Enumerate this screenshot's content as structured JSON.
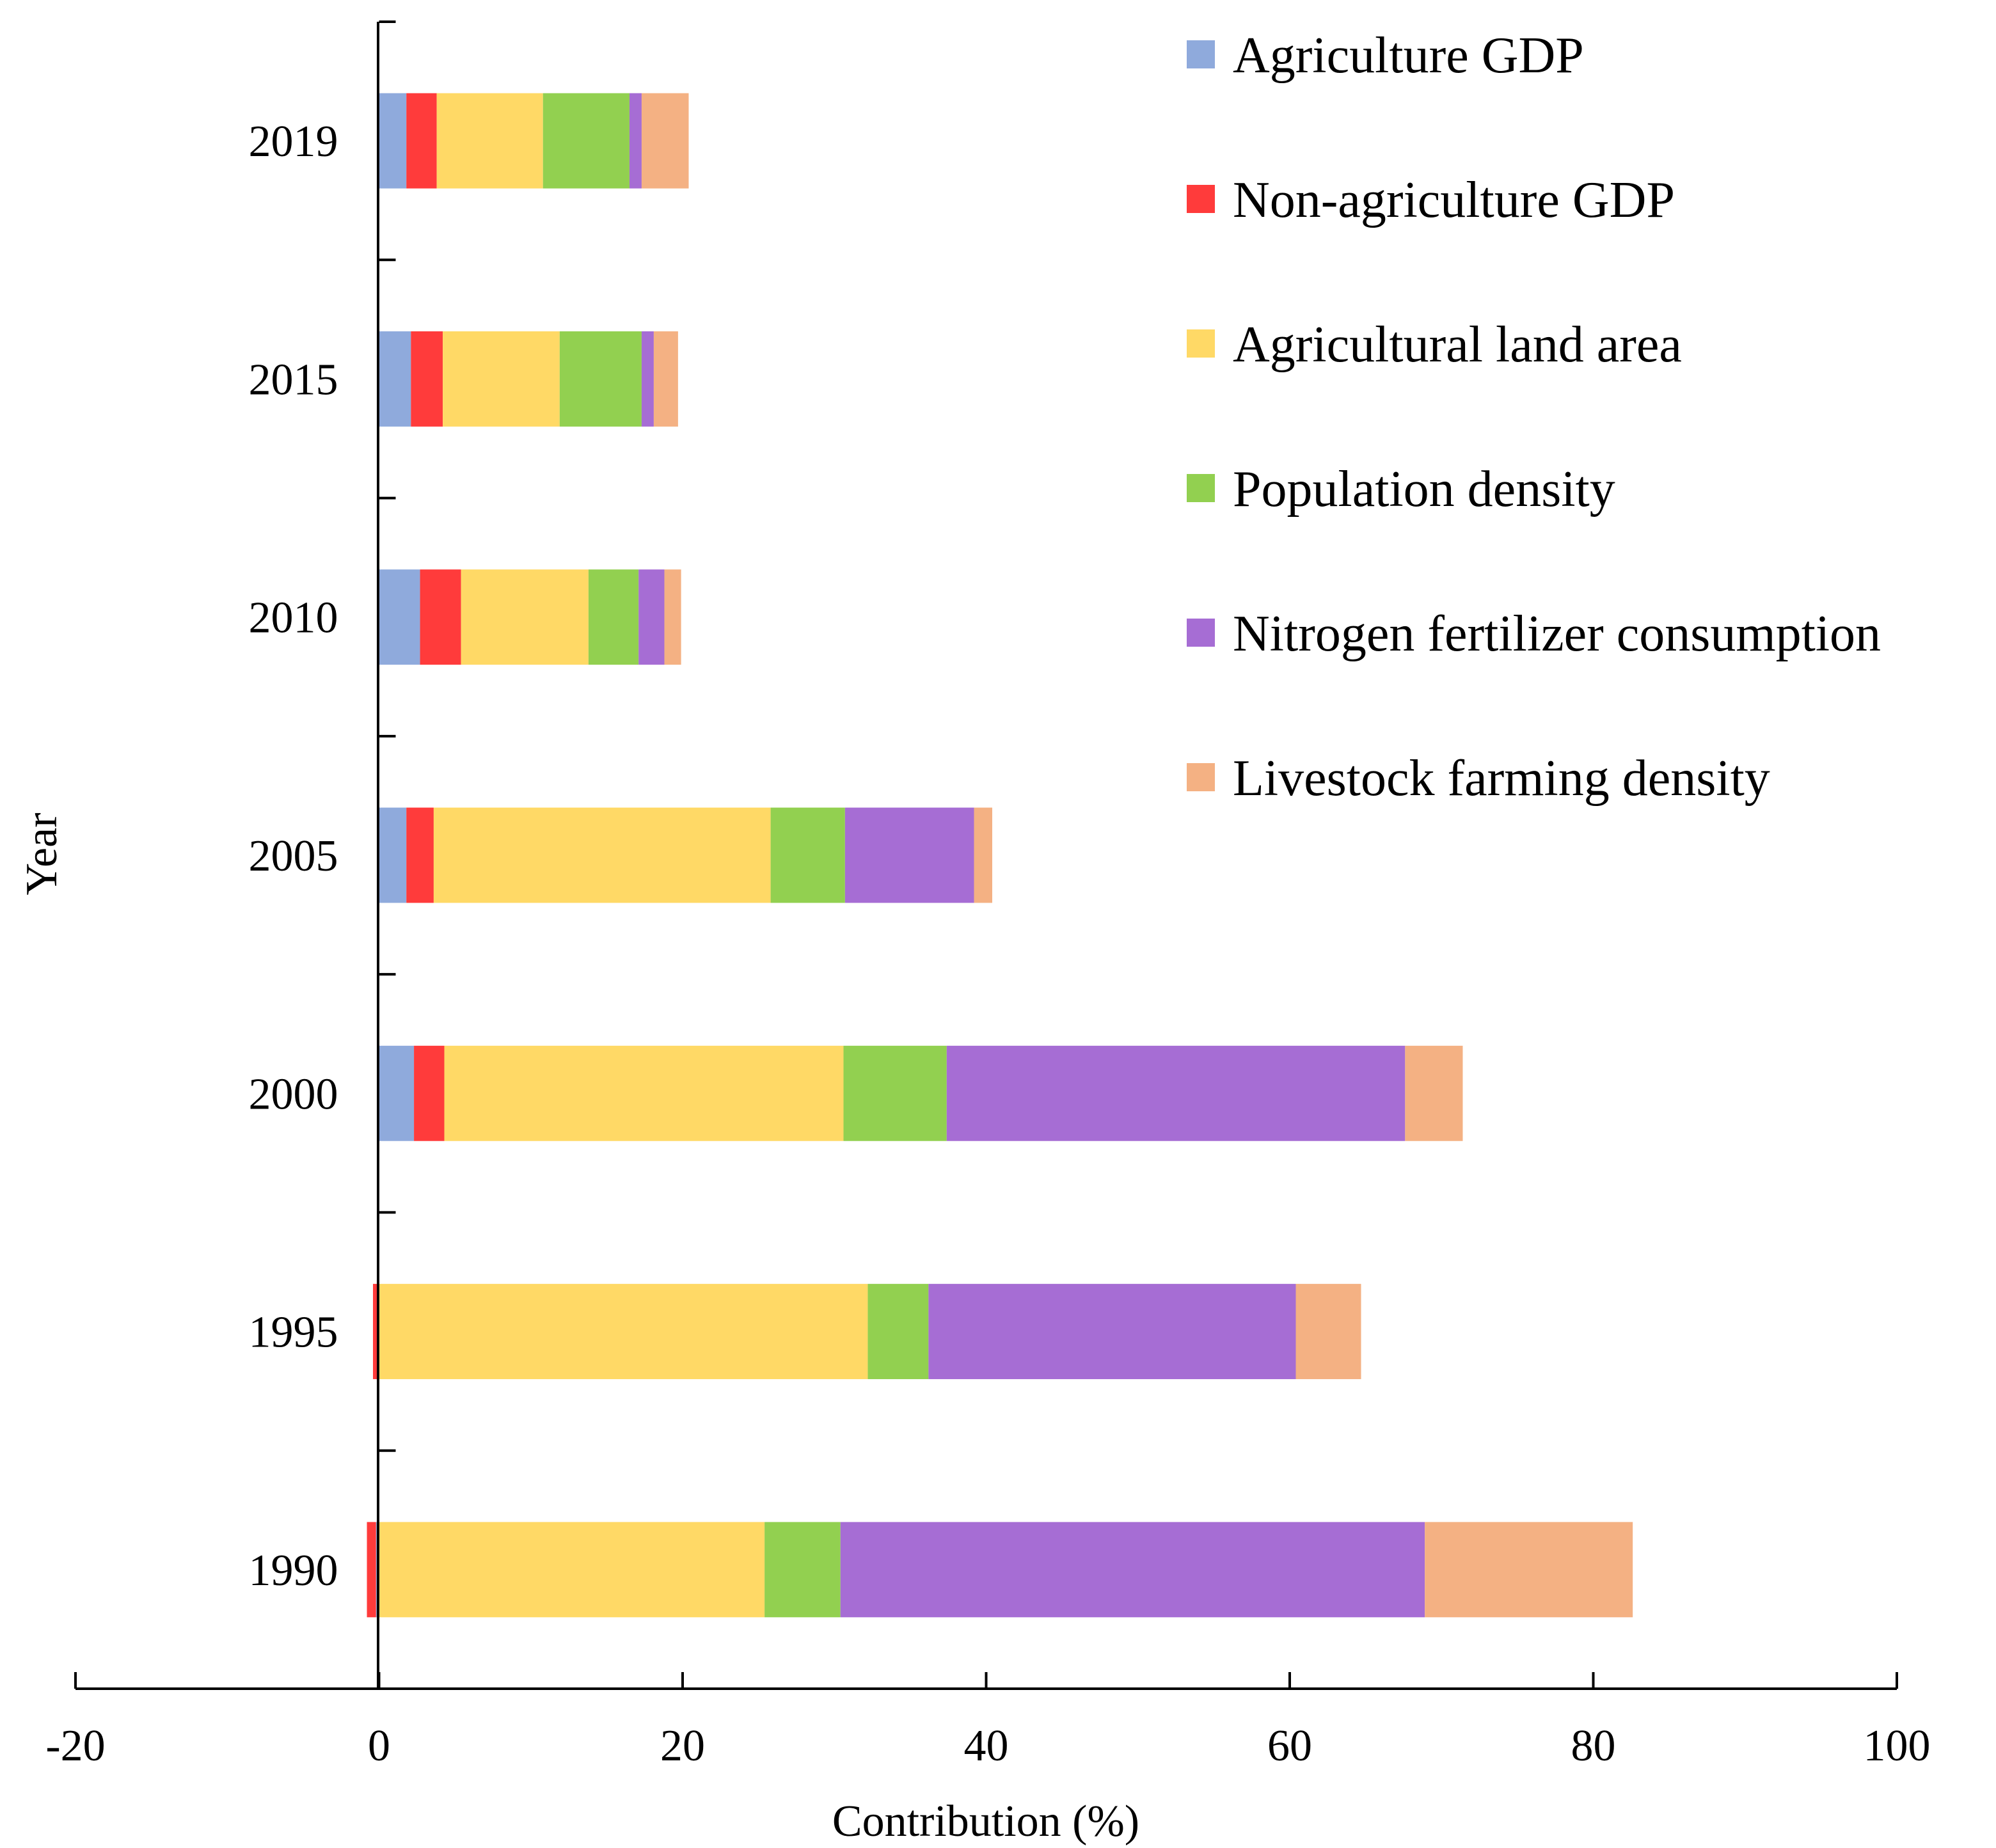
{
  "chart_data": {
    "type": "bar",
    "orientation": "horizontal",
    "stacked": true,
    "title": "",
    "xlabel": "Contribution (%)",
    "ylabel": "Year",
    "xlim": [
      -20,
      100
    ],
    "xticks": [
      -20,
      0,
      20,
      40,
      60,
      80,
      100
    ],
    "grid": false,
    "legend_position": "top-right",
    "categories": [
      "1990",
      "1995",
      "2000",
      "2005",
      "2010",
      "2015",
      "2019"
    ],
    "series": [
      {
        "name": "Agriculture GDP",
        "color": "#8faadc",
        "values": [
          -0.2,
          -0.1,
          2.3,
          1.8,
          2.7,
          2.1,
          1.8
        ]
      },
      {
        "name": "Non-agriculture GDP",
        "color": "#ff3b3b",
        "values": [
          -0.6,
          -0.3,
          2.0,
          1.8,
          2.7,
          2.1,
          2.0
        ]
      },
      {
        "name": "Agricultural land area",
        "color": "#ffd966",
        "values": [
          25.4,
          32.2,
          26.3,
          22.2,
          8.4,
          7.7,
          7.0
        ]
      },
      {
        "name": "Population density",
        "color": "#92d050",
        "values": [
          5.0,
          4.0,
          6.8,
          4.9,
          3.3,
          5.4,
          5.7
        ]
      },
      {
        "name": "Nitrogen fertilizer consumption",
        "color": "#a66dd4",
        "values": [
          38.5,
          24.2,
          30.2,
          8.5,
          1.7,
          0.8,
          0.8
        ]
      },
      {
        "name": "Livestock farming density",
        "color": "#f4b183",
        "values": [
          13.7,
          4.3,
          3.8,
          1.2,
          1.1,
          1.6,
          3.1
        ]
      }
    ]
  }
}
